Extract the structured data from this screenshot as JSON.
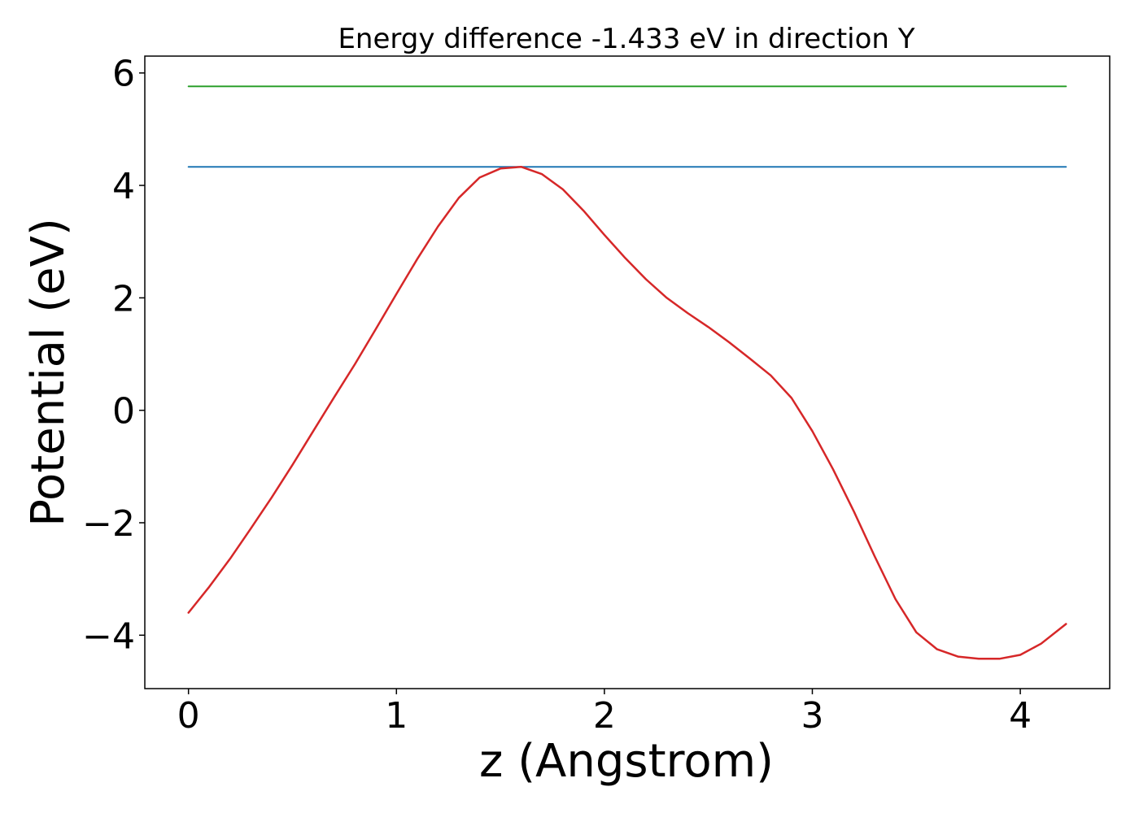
{
  "chart_data": {
    "type": "line",
    "title": "Energy difference -1.433 eV in direction Y",
    "xlabel": "z (Angstrom)",
    "ylabel": "Potential (eV)",
    "xlim": [
      -0.21,
      4.43
    ],
    "ylim": [
      -4.95,
      6.3
    ],
    "xticks": [
      0,
      1,
      2,
      3,
      4
    ],
    "xtick_labels": [
      "0",
      "1",
      "2",
      "3",
      "4"
    ],
    "yticks": [
      -4,
      -2,
      0,
      2,
      4,
      6
    ],
    "ytick_labels": [
      "−4",
      "−2",
      "0",
      "2",
      "4",
      "6"
    ],
    "grid": false,
    "series": [
      {
        "color": "#2ca02c",
        "x": [
          0,
          4.22
        ],
        "y": [
          5.76,
          5.76
        ]
      },
      {
        "color": "#1f77b4",
        "x": [
          0,
          4.22
        ],
        "y": [
          4.33,
          4.33
        ]
      },
      {
        "color": "#d62728",
        "x": [
          0,
          0.1,
          0.2,
          0.3,
          0.4,
          0.5,
          0.6,
          0.7,
          0.8,
          0.9,
          1.0,
          1.1,
          1.2,
          1.3,
          1.4,
          1.5,
          1.6,
          1.7,
          1.8,
          1.9,
          2.0,
          2.1,
          2.2,
          2.3,
          2.4,
          2.5,
          2.6,
          2.7,
          2.8,
          2.9,
          3.0,
          3.1,
          3.2,
          3.3,
          3.4,
          3.5,
          3.6,
          3.7,
          3.8,
          3.9,
          4.0,
          4.1,
          4.22
        ],
        "y": [
          -3.6,
          -3.14,
          -2.64,
          -2.1,
          -1.55,
          -0.97,
          -0.37,
          0.23,
          0.82,
          1.44,
          2.07,
          2.69,
          3.27,
          3.78,
          4.14,
          4.3,
          4.33,
          4.2,
          3.93,
          3.55,
          3.12,
          2.71,
          2.33,
          2.0,
          1.73,
          1.48,
          1.21,
          0.92,
          0.62,
          0.22,
          -0.37,
          -1.05,
          -1.8,
          -2.6,
          -3.36,
          -3.95,
          -4.25,
          -4.38,
          -4.42,
          -4.42,
          -4.35,
          -4.15,
          -3.8
        ]
      }
    ]
  }
}
